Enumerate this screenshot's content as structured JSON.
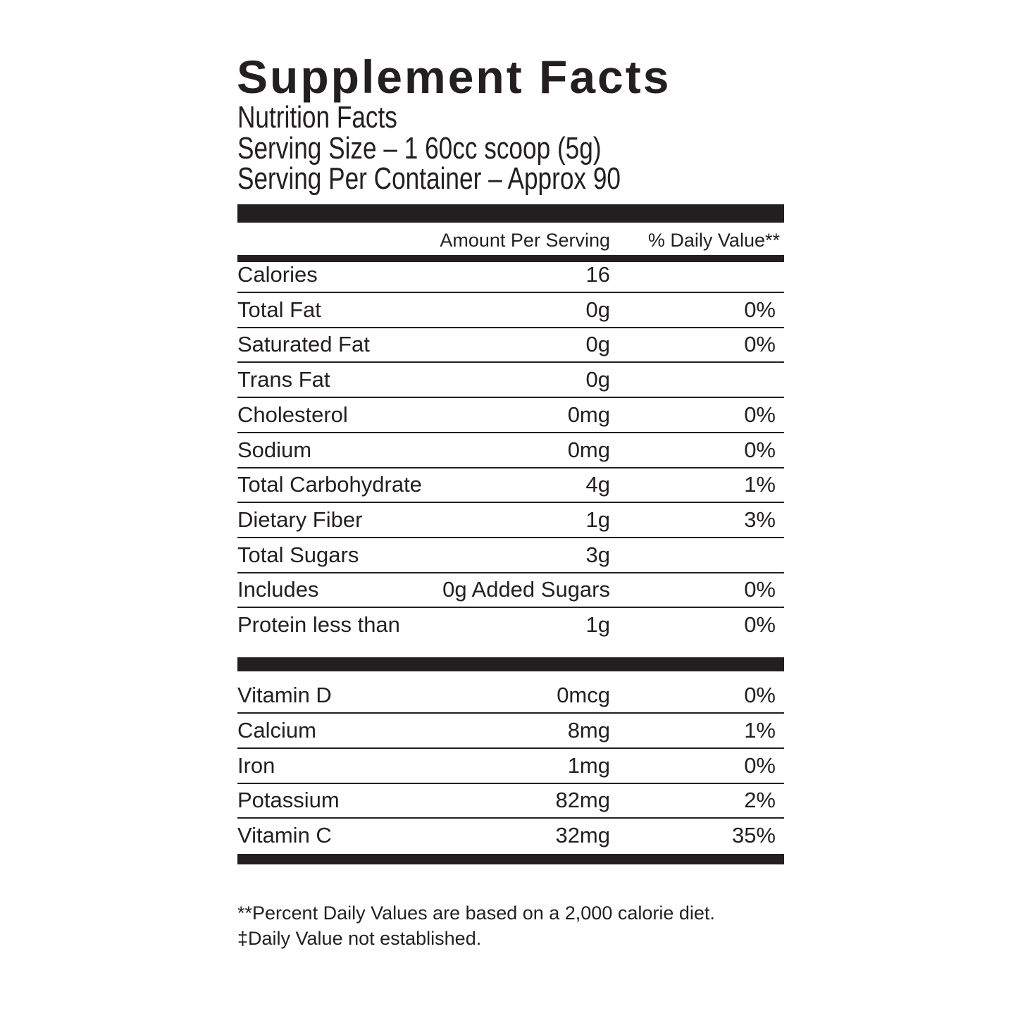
{
  "header": {
    "title": "Supplement Facts",
    "subtitle": "Nutrition Facts",
    "serving_size": "Serving Size – 1 60cc scoop (5g)",
    "servings_per_container": "Serving Per Container – Approx 90"
  },
  "table": {
    "columns": [
      "Amount Per Serving",
      "% Daily Value**"
    ],
    "rows": [
      {
        "name": "Calories",
        "amount": "16"
      },
      {
        "name": "Total Fat",
        "amount": "0g",
        "dv": "0%"
      },
      {
        "name": "Saturated Fat",
        "amount": "0g",
        "dv": "0%"
      },
      {
        "name": "Trans Fat",
        "amount": "0g"
      },
      {
        "name": "Cholesterol",
        "amount": "0mg",
        "dv": "0%"
      },
      {
        "name": "Sodium",
        "amount": "0mg",
        "dv": "0%"
      },
      {
        "name": "Total Carbohydrate",
        "amount": "4g",
        "dv": "1%"
      },
      {
        "name": "Dietary Fiber",
        "amount": "1g",
        "dv": "3%"
      },
      {
        "name": "Total Sugars",
        "amount": "3g"
      },
      {
        "name": "Includes",
        "amount": "0g Added Sugars",
        "dv": "0%"
      },
      {
        "name": "Protein less than",
        "amount": "1g",
        "dv": "0%"
      }
    ],
    "vitamins": [
      {
        "name": "Vitamin D",
        "amount": "0mcg",
        "dv": "0%"
      },
      {
        "name": "Calcium",
        "amount": "8mg",
        "dv": "1%"
      },
      {
        "name": "Iron",
        "amount": "1mg",
        "dv": "0%"
      },
      {
        "name": "Potassium",
        "amount": "82mg",
        "dv": "2%"
      },
      {
        "name": "Vitamin C",
        "amount": "32mg",
        "dv": "35%"
      }
    ]
  },
  "footnotes": [
    "**Percent Daily Values are based on a 2,000 calorie diet.",
    "‡Daily Value not established."
  ]
}
